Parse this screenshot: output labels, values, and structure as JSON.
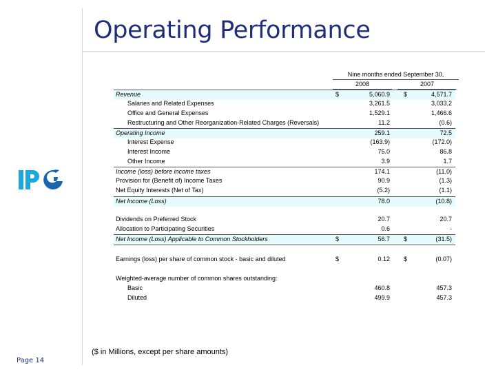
{
  "title": "Operating Performance",
  "page_label": "Page 14",
  "footnote": "($ in Millions, except per share amounts)",
  "logo_text": "IPG",
  "table": {
    "period_header": "Nine months ended September 30,",
    "col1": "2008",
    "col2": "2007",
    "rows": [
      {
        "label": "Revenue",
        "d1": "$",
        "v1": "5,060.9",
        "d2": "$",
        "v2": "4,571.7",
        "style": "hl it bt"
      },
      {
        "label": "Salaries and Related Expenses",
        "d1": "",
        "v1": "3,261.5",
        "d2": "",
        "v2": "3,033.2",
        "style": "ind"
      },
      {
        "label": "Office and General Expenses",
        "d1": "",
        "v1": "1,529.1",
        "d2": "",
        "v2": "1,466.6",
        "style": "ind"
      },
      {
        "label": "Restructuring and Other Reorganization-Related Charges (Reversals)",
        "d1": "",
        "v1": "11.2",
        "d2": "",
        "v2": "(0.6)",
        "style": "ind"
      },
      {
        "label": "Operating Income",
        "d1": "",
        "v1": "259.1",
        "d2": "",
        "v2": "72.5",
        "style": "hl it bt"
      },
      {
        "label": "Interest Expense",
        "d1": "",
        "v1": "(163.9)",
        "d2": "",
        "v2": "(172.0)",
        "style": "ind"
      },
      {
        "label": "Interest Income",
        "d1": "",
        "v1": "75.0",
        "d2": "",
        "v2": "86.8",
        "style": "ind"
      },
      {
        "label": "Other Income",
        "d1": "",
        "v1": "3.9",
        "d2": "",
        "v2": "1.7",
        "style": "ind"
      },
      {
        "label": "Income (loss) before income taxes",
        "d1": "",
        "v1": "174.1",
        "d2": "",
        "v2": "(11.0)",
        "style": "it bt"
      },
      {
        "label": "Provision for (Benefit of) Income Taxes",
        "d1": "",
        "v1": "90.9",
        "d2": "",
        "v2": "(1.3)",
        "style": ""
      },
      {
        "label": "Net Equity Interests (Net of Tax)",
        "d1": "",
        "v1": "(5.2)",
        "d2": "",
        "v2": "(1.1)",
        "style": ""
      },
      {
        "label": "Net Income (Loss)",
        "d1": "",
        "v1": "78.0",
        "d2": "",
        "v2": "(10.8)",
        "style": "hl it bt"
      },
      {
        "label": "Dividends on Preferred Stock",
        "d1": "",
        "v1": "20.7",
        "d2": "",
        "v2": "20.7",
        "style": "gap"
      },
      {
        "label": "Allocation to Participating Securities",
        "d1": "",
        "v1": "0.6",
        "d2": "",
        "v2": "-",
        "style": ""
      },
      {
        "label": "Net Income (Loss) Applicable to Common Stockholders",
        "d1": "$",
        "v1": "56.7",
        "d2": "$",
        "v2": "(31.5)",
        "style": "hl it bt bb"
      },
      {
        "label": "Earnings (loss) per share of common stock - basic and diluted",
        "d1": "$",
        "v1": "0.12",
        "d2": "$",
        "v2": "(0.07)",
        "style": "gap2"
      },
      {
        "label": "Weighted-average number of common shares outstanding:",
        "d1": "",
        "v1": "",
        "d2": "",
        "v2": "",
        "style": "gap2"
      },
      {
        "label": "Basic",
        "d1": "",
        "v1": "460.8",
        "d2": "",
        "v2": "457.3",
        "style": "ind"
      },
      {
        "label": "Diluted",
        "d1": "",
        "v1": "499.9",
        "d2": "",
        "v2": "457.3",
        "style": "ind"
      }
    ]
  }
}
